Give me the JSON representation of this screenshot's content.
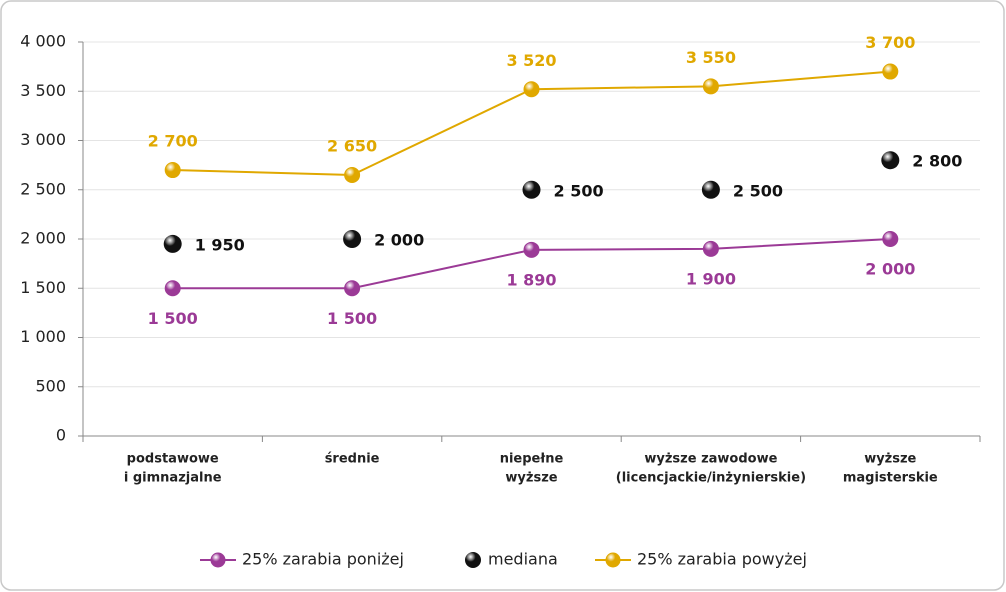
{
  "chart_data": {
    "type": "line",
    "categories": [
      [
        "podstawowe",
        "i gimnazjalne"
      ],
      [
        "średnie"
      ],
      [
        "niepełne",
        "wyższe"
      ],
      [
        "wyższe zawodowe",
        "(licencjackie/inżynierskie)"
      ],
      [
        "wyższe",
        "magisterskie"
      ]
    ],
    "series": [
      {
        "name": "25% zarabia poniżej",
        "color": "#9b3a96",
        "line": true,
        "label_position": "below",
        "values": [
          1500,
          1500,
          1890,
          1900,
          2000
        ],
        "value_labels": [
          "1 500",
          "1 500",
          "1 890",
          "1 900",
          "2 000"
        ]
      },
      {
        "name": "mediana",
        "color": "#111111",
        "line": false,
        "label_position": "right",
        "values": [
          1950,
          2000,
          2500,
          2500,
          2800
        ],
        "value_labels": [
          "1 950",
          "2 000",
          "2 500",
          "2 500",
          "2 800"
        ]
      },
      {
        "name": "25% zarabia powyżej",
        "color": "#e0a800",
        "line": true,
        "label_position": "above",
        "values": [
          2700,
          2650,
          3520,
          3550,
          3700
        ],
        "value_labels": [
          "2 700",
          "2 650",
          "3 520",
          "3 550",
          "3 700"
        ]
      }
    ],
    "ylim": [
      0,
      4000
    ],
    "yticks": [
      0,
      500,
      {
        "value": 1000,
        "label": "1 000"
      },
      {
        "value": 1500,
        "label": "1 500"
      },
      {
        "value": 2000,
        "label": "2 000"
      },
      {
        "value": 2500,
        "label": "2 500"
      },
      {
        "value": 3000,
        "label": "3 000"
      },
      {
        "value": 3500,
        "label": "3 500"
      },
      {
        "value": 4000,
        "label": "4 000"
      }
    ],
    "grid": true,
    "legend": "bottom"
  }
}
